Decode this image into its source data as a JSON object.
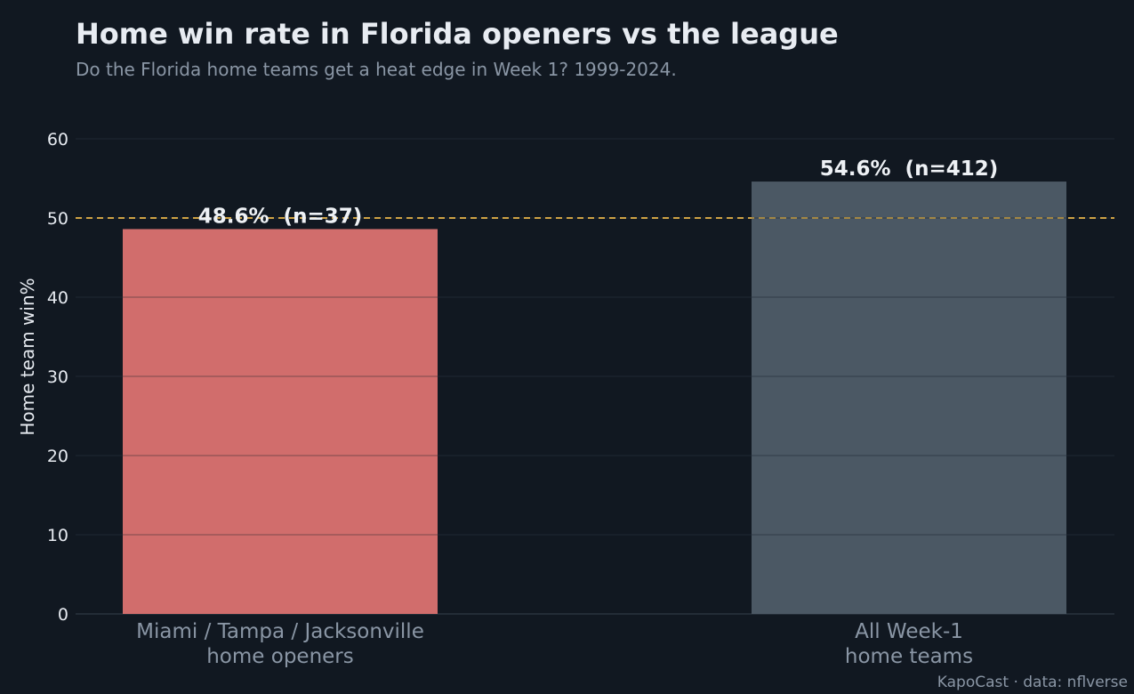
{
  "chart_data": {
    "type": "bar",
    "title": "Home win rate in Florida openers vs the league",
    "subtitle": "Do the Florida home teams get a heat edge in Week 1? 1999-2024.",
    "ylabel": "Home team win%",
    "xlabel": "",
    "ylim": [
      0,
      60
    ],
    "yticks": [
      0,
      10,
      20,
      30,
      40,
      50,
      60
    ],
    "grid": true,
    "categories": [
      [
        "Miami / Tampa / Jacksonville",
        "home openers"
      ],
      [
        "All Week-1",
        "home teams"
      ]
    ],
    "values": [
      48.6,
      54.6
    ],
    "n": [
      37,
      412
    ],
    "data_labels": [
      "48.6%  (n=37)",
      "54.6%  (n=412)"
    ],
    "bar_colors": [
      "#d16d6c",
      "#4b5864"
    ],
    "reference_line": {
      "value": 50,
      "style": "dashed",
      "color": "#e8b54a"
    },
    "credit": "KapoCast · data: nflverse"
  },
  "colors": {
    "background": "#111821",
    "gridline": "#1b232d",
    "text": "#e6eaf0",
    "muted_text": "#8a96a5"
  }
}
